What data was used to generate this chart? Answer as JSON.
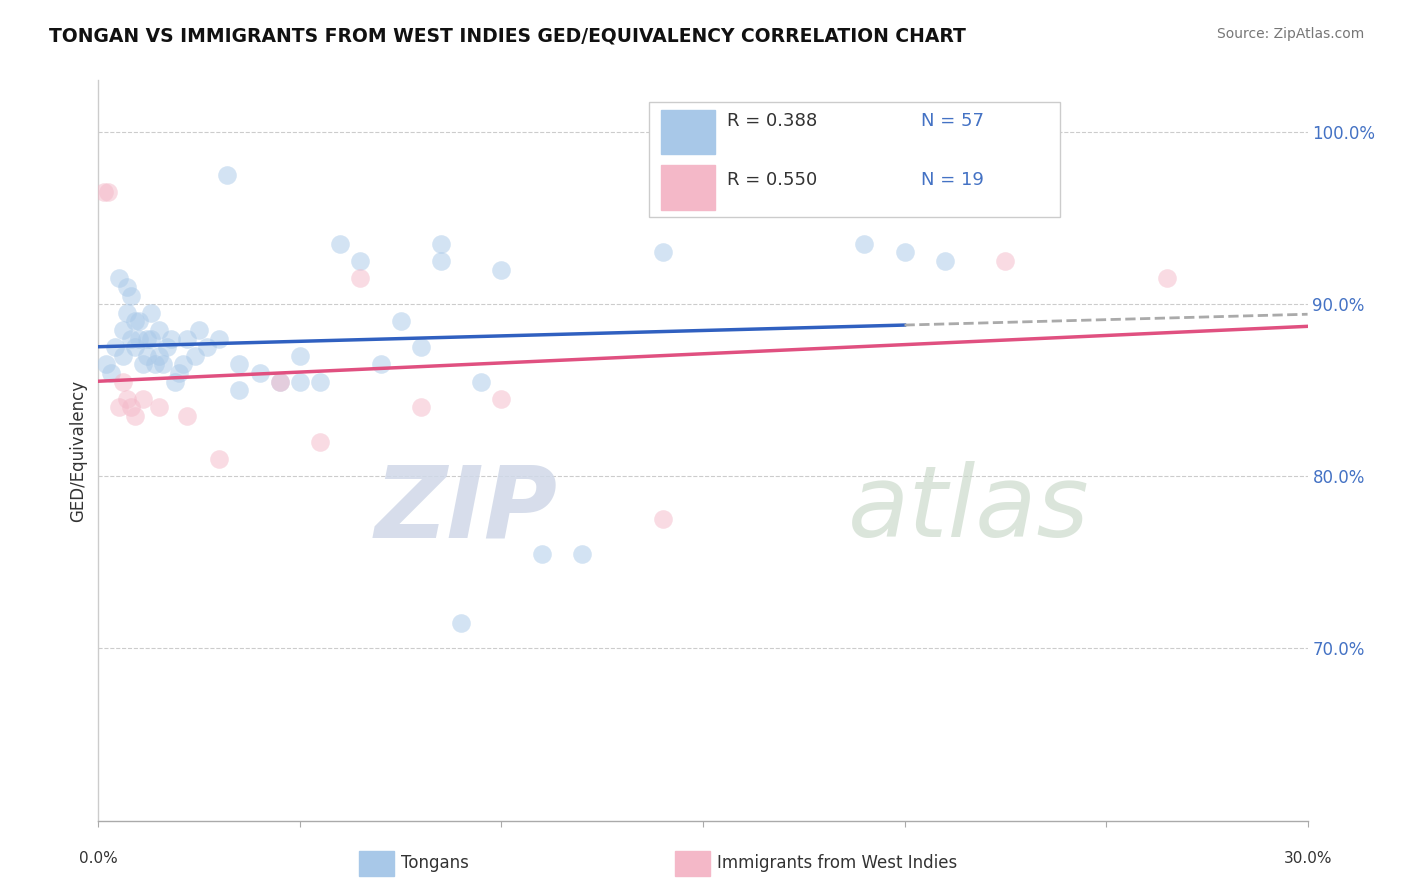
{
  "title": "TONGAN VS IMMIGRANTS FROM WEST INDIES GED/EQUIVALENCY CORRELATION CHART",
  "source": "Source: ZipAtlas.com",
  "ylabel": "GED/Equivalency",
  "xlim": [
    0.0,
    30.0
  ],
  "ylim": [
    60.0,
    103.0
  ],
  "yticks": [
    70.0,
    80.0,
    90.0,
    100.0
  ],
  "legend_r1": "R = 0.388",
  "legend_n1": "N = 57",
  "legend_r2": "R = 0.550",
  "legend_n2": "N = 19",
  "blue_color": "#a8c8e8",
  "pink_color": "#f4b8c8",
  "blue_line_color": "#3060c0",
  "pink_line_color": "#e05080",
  "blue_x": [
    0.2,
    0.3,
    0.4,
    0.5,
    0.6,
    0.6,
    0.7,
    0.7,
    0.8,
    0.8,
    0.9,
    0.9,
    1.0,
    1.0,
    1.1,
    1.2,
    1.2,
    1.3,
    1.3,
    1.4,
    1.5,
    1.5,
    1.6,
    1.7,
    1.8,
    1.9,
    2.0,
    2.1,
    2.2,
    2.4,
    2.5,
    2.7,
    3.0,
    3.2,
    3.5,
    4.0,
    4.5,
    5.0,
    5.5,
    6.0,
    7.0,
    7.5,
    8.0,
    8.5,
    9.0,
    9.5,
    10.0,
    11.0,
    12.0,
    3.5,
    5.0,
    6.5,
    8.5,
    14.0,
    19.0,
    20.0,
    21.0
  ],
  "blue_y": [
    86.5,
    86.0,
    87.5,
    91.5,
    88.5,
    87.0,
    91.0,
    89.5,
    88.0,
    90.5,
    87.5,
    89.0,
    89.0,
    88.0,
    86.5,
    88.0,
    87.0,
    89.5,
    88.0,
    86.5,
    88.5,
    87.0,
    86.5,
    87.5,
    88.0,
    85.5,
    86.0,
    86.5,
    88.0,
    87.0,
    88.5,
    87.5,
    88.0,
    97.5,
    86.5,
    86.0,
    85.5,
    87.0,
    85.5,
    93.5,
    86.5,
    89.0,
    87.5,
    92.5,
    71.5,
    85.5,
    92.0,
    75.5,
    75.5,
    85.0,
    85.5,
    92.5,
    93.5,
    93.0,
    93.5,
    93.0,
    92.5
  ],
  "pink_x": [
    0.15,
    0.25,
    0.5,
    0.6,
    0.7,
    0.8,
    0.9,
    1.1,
    1.5,
    2.2,
    3.0,
    4.5,
    5.5,
    6.5,
    8.0,
    10.0,
    14.0,
    22.5,
    26.5
  ],
  "pink_y": [
    96.5,
    96.5,
    84.0,
    85.5,
    84.5,
    84.0,
    83.5,
    84.5,
    84.0,
    83.5,
    81.0,
    85.5,
    82.0,
    91.5,
    84.0,
    84.5,
    77.5,
    92.5,
    91.5
  ],
  "watermark_zip": "ZIP",
  "watermark_atlas": "atlas",
  "legend_color": "#4472c4"
}
